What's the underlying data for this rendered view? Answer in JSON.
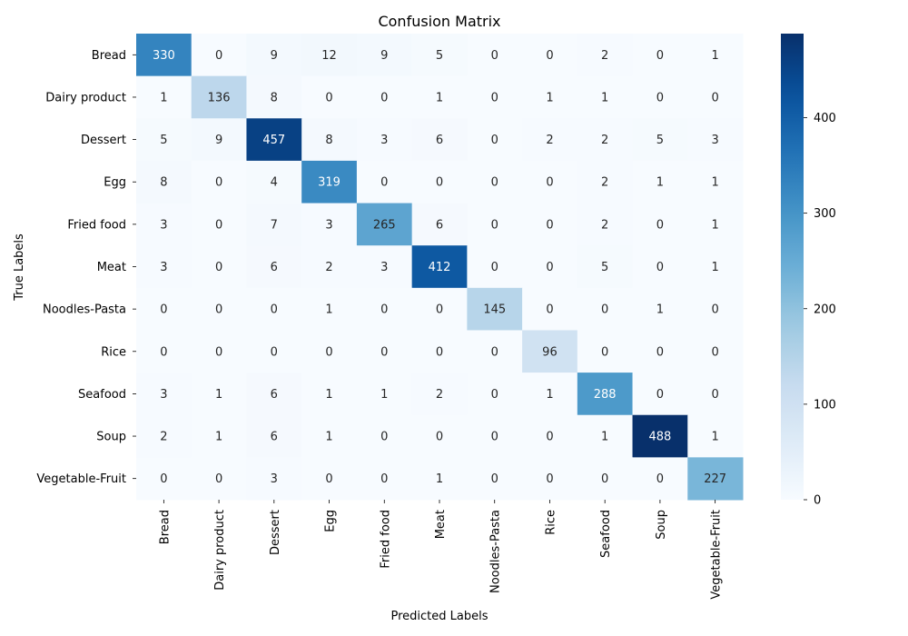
{
  "chart_data": {
    "type": "heatmap",
    "title": "Confusion Matrix",
    "xlabel": "Predicted Labels",
    "ylabel": "True Labels",
    "categories": [
      "Bread",
      "Dairy product",
      "Dessert",
      "Egg",
      "Fried food",
      "Meat",
      "Noodles-Pasta",
      "Rice",
      "Seafood",
      "Soup",
      "Vegetable-Fruit"
    ],
    "values": [
      [
        330,
        0,
        9,
        12,
        9,
        5,
        0,
        0,
        2,
        0,
        1
      ],
      [
        1,
        136,
        8,
        0,
        0,
        1,
        0,
        1,
        1,
        0,
        0
      ],
      [
        5,
        9,
        457,
        8,
        3,
        6,
        0,
        2,
        2,
        5,
        3
      ],
      [
        8,
        0,
        4,
        319,
        0,
        0,
        0,
        0,
        2,
        1,
        1
      ],
      [
        3,
        0,
        7,
        3,
        265,
        6,
        0,
        0,
        2,
        0,
        1
      ],
      [
        3,
        0,
        6,
        2,
        3,
        412,
        0,
        0,
        5,
        0,
        1
      ],
      [
        0,
        0,
        0,
        1,
        0,
        0,
        145,
        0,
        0,
        1,
        0
      ],
      [
        0,
        0,
        0,
        0,
        0,
        0,
        0,
        96,
        0,
        0,
        0
      ],
      [
        3,
        1,
        6,
        1,
        1,
        2,
        0,
        1,
        288,
        0,
        0
      ],
      [
        2,
        1,
        6,
        1,
        0,
        0,
        0,
        0,
        1,
        488,
        1
      ],
      [
        0,
        0,
        3,
        0,
        0,
        1,
        0,
        0,
        0,
        0,
        227
      ]
    ],
    "colormap": "Blues",
    "vmin": 0,
    "vmax": 488,
    "colorbar_ticks": [
      0,
      100,
      200,
      300,
      400
    ]
  }
}
